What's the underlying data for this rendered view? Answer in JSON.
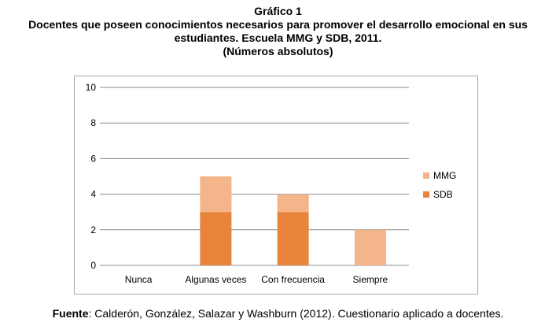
{
  "header": {
    "line1": "Gráfico 1",
    "line2": "Docentes que poseen conocimientos necesarios para promover el desarrollo emocional en sus",
    "line3": "estudiantes. Escuela  MMG y SDB,  2011.",
    "line4": "(Números absolutos)"
  },
  "footer": {
    "label": "Fuente",
    "text": ": Calderón, González, Salazar y Washburn (2012). Cuestionario aplicado a docentes."
  },
  "chart_data": {
    "type": "bar",
    "stacked": true,
    "categories": [
      "Nunca",
      "Algunas veces",
      "Con frecuencia",
      "Siempre"
    ],
    "series": [
      {
        "name": "SDB",
        "values": [
          0,
          3,
          3,
          0
        ],
        "color": "#e8843c"
      },
      {
        "name": "MMG",
        "values": [
          0,
          2,
          1,
          2
        ],
        "color": "#f4b58a"
      }
    ],
    "ylim": [
      0,
      10
    ],
    "yticks": [
      0,
      2,
      4,
      6,
      8,
      10
    ],
    "grid": true,
    "legend": "right"
  }
}
